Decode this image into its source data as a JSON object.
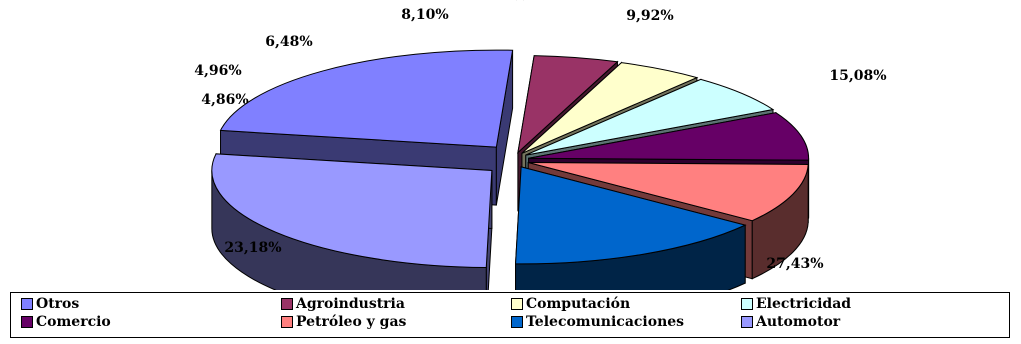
{
  "chart_data": {
    "type": "pie",
    "title_visible": "(                              )",
    "slices": [
      {
        "name": "Automotor",
        "value": 27.43,
        "label": "27,43%",
        "color": "#9999ff"
      },
      {
        "name": "Otros",
        "value": 23.18,
        "label": "23,18%",
        "color": "#8080ff"
      },
      {
        "name": "Agroindustria",
        "value": 4.86,
        "label": "4,86%",
        "color": "#993366"
      },
      {
        "name": "Computación",
        "value": 4.96,
        "label": "4,96%",
        "color": "#ffffcc"
      },
      {
        "name": "Electricidad",
        "value": 6.48,
        "label": "6,48%",
        "color": "#ccffff"
      },
      {
        "name": "Comercio",
        "value": 8.1,
        "label": "8,10%",
        "color": "#660066"
      },
      {
        "name": "Petróleo y gas",
        "value": 9.92,
        "label": "9,92%",
        "color": "#ff8080"
      },
      {
        "name": "Telecomunicaciones",
        "value": 15.08,
        "label": "15,08%",
        "color": "#0066cc"
      }
    ],
    "legend": {
      "placement": "bottom",
      "items": [
        "Otros",
        "Agroindustria",
        "Computación",
        "Electricidad",
        "Comercio",
        "Petróleo y gas",
        "Telecomunicaciones",
        "Automotor"
      ]
    }
  }
}
